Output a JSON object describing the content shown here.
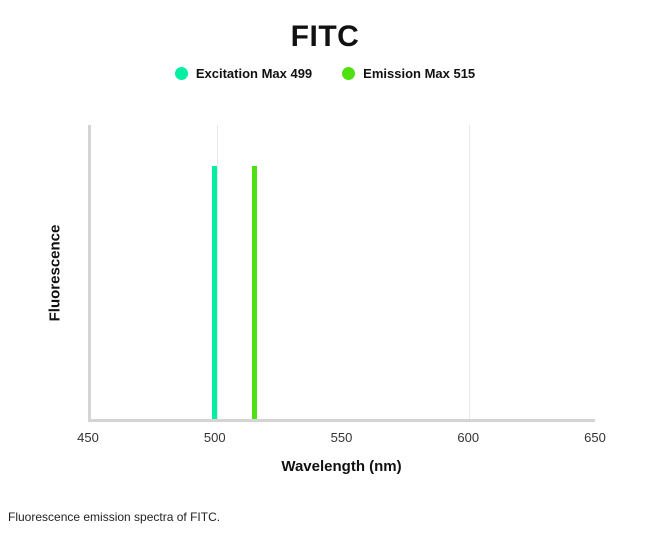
{
  "page": {
    "title": "FITC",
    "caption": "Fluorescence emission spectra of FITC."
  },
  "legend": {
    "items": [
      {
        "label": "Excitation Max 499",
        "color": "#00EFA0"
      },
      {
        "label": "Emission Max 515",
        "color": "#4FE011"
      }
    ]
  },
  "chart_data": {
    "type": "bar",
    "title": "FITC",
    "xlabel": "Wavelength (nm)",
    "ylabel": "Fluorescence",
    "xlim": [
      450,
      650
    ],
    "xticks": [
      450,
      500,
      550,
      600,
      650
    ],
    "gridlines_x": [
      500,
      600
    ],
    "grid": "vertical-light",
    "legend_position": "top-center",
    "series": [
      {
        "name": "Excitation Max 499",
        "x": 499,
        "height_fraction": 0.86,
        "color": "#00EFA0"
      },
      {
        "name": "Emission Max 515",
        "x": 515,
        "height_fraction": 0.86,
        "color": "#4FE011"
      }
    ]
  }
}
